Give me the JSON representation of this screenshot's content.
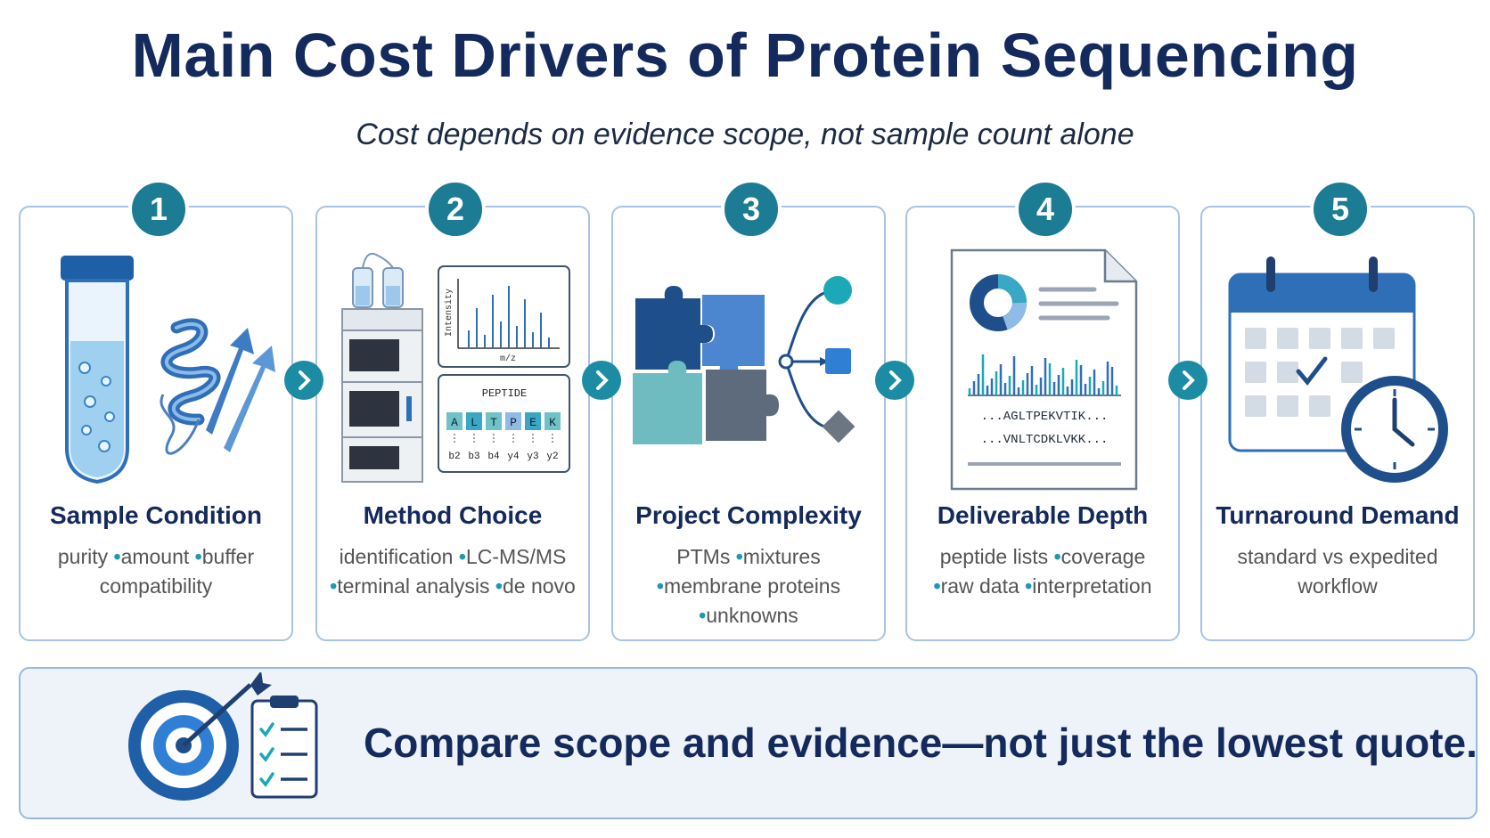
{
  "header": {
    "title": "Main Cost Drivers of Protein Sequencing",
    "subtitle": "Cost depends on evidence scope, not sample count alone"
  },
  "cards": [
    {
      "number": "1",
      "title": "Sample Condition",
      "details": [
        "purity",
        "amount",
        "buffer compatibility"
      ]
    },
    {
      "number": "2",
      "title": "Method Choice",
      "details": [
        "identification",
        "LC-MS/MS",
        "terminal analysis",
        "de novo"
      ]
    },
    {
      "number": "3",
      "title": "Project Complexity",
      "details": [
        "PTMs",
        "mixtures",
        "membrane proteins",
        "unknowns"
      ]
    },
    {
      "number": "4",
      "title": "Deliverable Depth",
      "details": [
        "peptide lists",
        "coverage",
        "raw data",
        "interpretation"
      ]
    },
    {
      "number": "5",
      "title": "Turnaround Demand",
      "details": [
        "standard vs expedited workflow"
      ]
    }
  ],
  "icons": {
    "method": {
      "y_axis": "Intensity",
      "x_axis": "m/z",
      "peptide_label": "PEPTIDE",
      "residues": [
        "A",
        "L",
        "T",
        "P",
        "E",
        "K"
      ],
      "ions": [
        "b2",
        "b3",
        "b4",
        "y4",
        "y3",
        "y2"
      ]
    },
    "deliverable": {
      "sequences": [
        "...AGLTPEKVTIK...",
        "...VNLTCDKLVKK..."
      ]
    }
  },
  "footer": {
    "text": "Compare scope and evidence—not just the lowest quote."
  }
}
